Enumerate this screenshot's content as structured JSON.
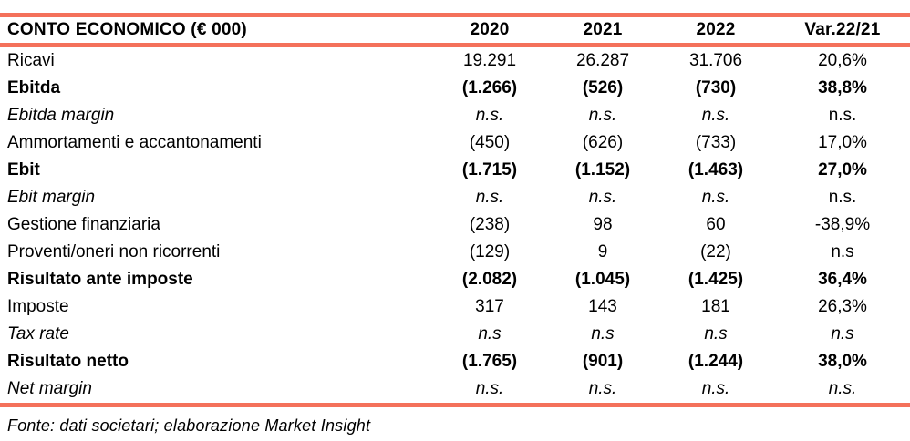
{
  "page": {
    "background": "#FFFFFF",
    "accent_color": "#F4715B",
    "text_color": "#000000"
  },
  "table": {
    "title": "CONTO ECONOMICO (€ 000)",
    "columns": [
      "2020",
      "2021",
      "2022",
      "Var.22/21"
    ],
    "rows": [
      {
        "label": "Ricavi",
        "style": "regular",
        "var_style": "regular",
        "values": [
          "19.291",
          "26.287",
          "31.706",
          "20,6%"
        ]
      },
      {
        "label": "Ebitda",
        "style": "bold",
        "var_style": "bold",
        "values": [
          "(1.266)",
          "(526)",
          "(730)",
          "38,8%"
        ]
      },
      {
        "label": "Ebitda margin",
        "style": "italic",
        "var_style": "regular",
        "values": [
          "n.s.",
          "n.s.",
          "n.s.",
          "n.s."
        ]
      },
      {
        "label": "Ammortamenti e accantonamenti",
        "style": "regular",
        "var_style": "regular",
        "values": [
          "(450)",
          "(626)",
          "(733)",
          "17,0%"
        ]
      },
      {
        "label": "Ebit",
        "style": "bold",
        "var_style": "bold",
        "values": [
          "(1.715)",
          "(1.152)",
          "(1.463)",
          "27,0%"
        ]
      },
      {
        "label": "Ebit margin",
        "style": "italic",
        "var_style": "regular",
        "values": [
          "n.s.",
          "n.s.",
          "n.s.",
          "n.s."
        ]
      },
      {
        "label": "Gestione finanziaria",
        "style": "regular",
        "var_style": "regular",
        "values": [
          "(238)",
          "98",
          "60",
          "-38,9%"
        ]
      },
      {
        "label": "Proventi/oneri non ricorrenti",
        "style": "regular",
        "var_style": "regular",
        "values": [
          "(129)",
          "9",
          "(22)",
          "n.s"
        ]
      },
      {
        "label": "Risultato ante imposte",
        "style": "bold",
        "var_style": "bold",
        "values": [
          "(2.082)",
          "(1.045)",
          "(1.425)",
          "36,4%"
        ]
      },
      {
        "label": "Imposte",
        "style": "regular",
        "var_style": "regular",
        "values": [
          "317",
          "143",
          "181",
          "26,3%"
        ]
      },
      {
        "label": "Tax rate",
        "style": "italic",
        "var_style": "italic",
        "values": [
          "n.s",
          "n.s",
          "n.s",
          "n.s"
        ]
      },
      {
        "label": "Risultato netto",
        "style": "bold",
        "var_style": "bold",
        "values": [
          "(1.765)",
          "(901)",
          "(1.244)",
          "38,0%"
        ]
      },
      {
        "label": "Net margin",
        "style": "italic",
        "var_style": "italic",
        "values": [
          "n.s.",
          "n.s.",
          "n.s.",
          "n.s."
        ]
      }
    ]
  },
  "footer": {
    "source": "Fonte: dati societari; elaborazione Market Insight"
  }
}
